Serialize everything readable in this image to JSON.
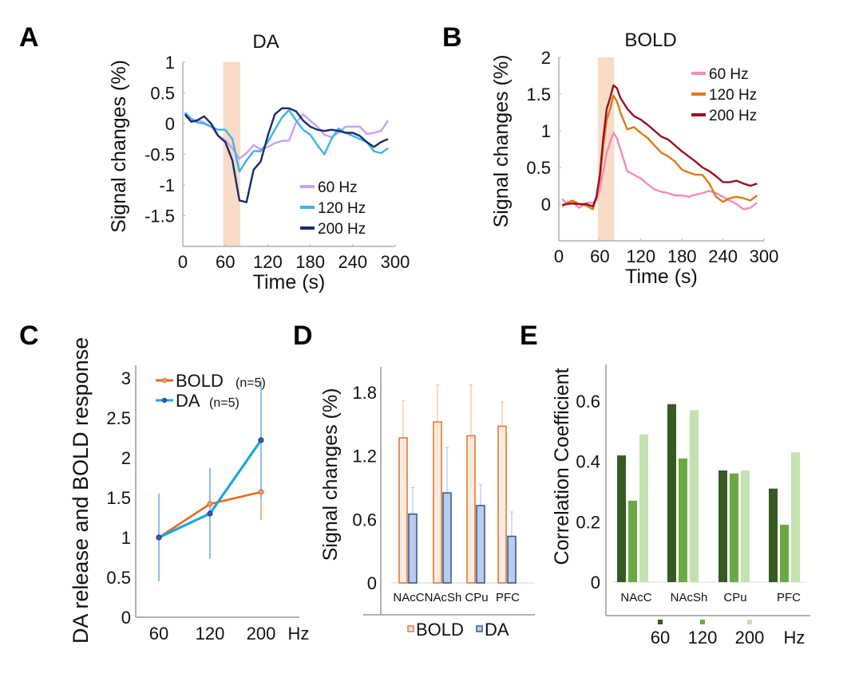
{
  "panels": {
    "A": "A",
    "B": "B",
    "C": "C",
    "D": "D",
    "E": "E"
  },
  "chart_data": [
    {
      "id": "A",
      "type": "line",
      "title": "DA",
      "xlabel": "Time (s)",
      "ylabel": "Signal changes (%)",
      "xlim": [
        0,
        300
      ],
      "ylim": [
        -2,
        1
      ],
      "xticks": [
        "0",
        "60",
        "120",
        "180",
        "240",
        "300"
      ],
      "xtick_values": [
        0,
        60,
        120,
        180,
        240,
        300
      ],
      "yticks": [
        "1",
        "0.5",
        "0",
        "-0.5",
        "-1",
        "-1.5"
      ],
      "ytick_values": [
        1,
        0.5,
        0,
        -0.5,
        -1,
        -1.5
      ],
      "stim_window": [
        57,
        81
      ],
      "stim_color": "#f8dcc8",
      "legend_position": "bottom-right",
      "series": [
        {
          "name": "60 Hz",
          "color": "#c9a0f0",
          "x": [
            3,
            12,
            20,
            30,
            40,
            50,
            60,
            70,
            80,
            90,
            100,
            110,
            120,
            130,
            140,
            150,
            160,
            170,
            180,
            190,
            200,
            210,
            220,
            230,
            240,
            250,
            260,
            270,
            280,
            290
          ],
          "y": [
            0.12,
            0.05,
            0.06,
            0.02,
            -0.05,
            -0.2,
            -0.27,
            -0.4,
            -0.57,
            -0.48,
            -0.35,
            -0.42,
            -0.38,
            -0.32,
            -0.28,
            -0.28,
            0.02,
            0.15,
            0.05,
            -0.05,
            -0.18,
            -0.22,
            -0.15,
            -0.05,
            -0.05,
            -0.05,
            -0.17,
            -0.15,
            -0.12,
            0.05
          ]
        },
        {
          "name": "120 Hz",
          "color": "#3ab4e8",
          "x": [
            3,
            12,
            20,
            30,
            40,
            50,
            60,
            70,
            80,
            90,
            100,
            110,
            120,
            130,
            140,
            150,
            160,
            170,
            180,
            190,
            200,
            210,
            220,
            230,
            240,
            250,
            260,
            270,
            280,
            290
          ],
          "y": [
            0.18,
            0.08,
            0.02,
            0.0,
            -0.05,
            -0.1,
            -0.1,
            -0.25,
            -0.78,
            -0.6,
            -0.45,
            -0.45,
            -0.3,
            -0.1,
            0.1,
            0.22,
            0.05,
            -0.1,
            -0.18,
            -0.35,
            -0.5,
            -0.25,
            -0.08,
            -0.15,
            -0.2,
            -0.25,
            -0.3,
            -0.45,
            -0.48,
            -0.4
          ]
        },
        {
          "name": "200 Hz",
          "color": "#1b2a6b",
          "x": [
            3,
            12,
            20,
            30,
            40,
            50,
            60,
            70,
            80,
            90,
            100,
            110,
            120,
            130,
            140,
            150,
            160,
            170,
            180,
            190,
            200,
            210,
            220,
            230,
            240,
            250,
            260,
            270,
            280,
            290
          ],
          "y": [
            0.15,
            0.03,
            0.05,
            0.12,
            0.0,
            -0.2,
            -0.3,
            -0.6,
            -1.25,
            -1.28,
            -0.75,
            -0.62,
            -0.2,
            0.15,
            0.25,
            0.25,
            0.2,
            0.05,
            -0.05,
            -0.1,
            -0.12,
            -0.1,
            -0.12,
            -0.15,
            -0.15,
            -0.2,
            -0.3,
            -0.38,
            -0.3,
            -0.25
          ]
        }
      ]
    },
    {
      "id": "B",
      "type": "line",
      "title": "BOLD",
      "xlabel": "Time (s)",
      "ylabel": "Signal changes (%)",
      "xlim": [
        0,
        300
      ],
      "ylim": [
        -0.5,
        2
      ],
      "xticks": [
        "0",
        "60",
        "120",
        "180",
        "240",
        "300"
      ],
      "xtick_values": [
        0,
        60,
        120,
        180,
        240,
        300
      ],
      "yticks": [
        "2",
        "1.5",
        "1",
        "0.5",
        "0"
      ],
      "ytick_values": [
        2,
        1.5,
        1,
        0.5,
        0
      ],
      "stim_window": [
        57,
        81
      ],
      "stim_color": "#f8dcc8",
      "legend_position": "top-right",
      "series": [
        {
          "name": "60 Hz",
          "color": "#f58ab8",
          "x": [
            5,
            12,
            20,
            30,
            40,
            50,
            55,
            60,
            65,
            70,
            75,
            80,
            85,
            90,
            100,
            110,
            120,
            130,
            140,
            150,
            160,
            170,
            180,
            190,
            200,
            210,
            220,
            230,
            240,
            250,
            260,
            270,
            280,
            290
          ],
          "y": [
            0.07,
            0.0,
            0.02,
            -0.05,
            0.02,
            0.02,
            0.05,
            0.2,
            0.45,
            0.7,
            0.85,
            0.97,
            0.9,
            0.75,
            0.45,
            0.4,
            0.35,
            0.27,
            0.2,
            0.17,
            0.15,
            0.12,
            0.12,
            0.1,
            0.13,
            0.15,
            0.18,
            0.15,
            0.1,
            0.05,
            0.0,
            -0.07,
            -0.05,
            0.02
          ]
        },
        {
          "name": "120 Hz",
          "color": "#dc7b16",
          "x": [
            5,
            12,
            20,
            30,
            40,
            50,
            55,
            60,
            65,
            70,
            75,
            80,
            85,
            90,
            100,
            110,
            120,
            130,
            140,
            150,
            160,
            170,
            180,
            190,
            200,
            210,
            220,
            230,
            240,
            250,
            260,
            270,
            280,
            290
          ],
          "y": [
            -0.03,
            0.02,
            0.05,
            0.0,
            -0.02,
            -0.07,
            0.1,
            0.35,
            0.8,
            1.15,
            1.3,
            1.48,
            1.4,
            1.25,
            1.02,
            1.05,
            0.97,
            0.9,
            0.8,
            0.7,
            0.65,
            0.58,
            0.47,
            0.43,
            0.4,
            0.4,
            0.28,
            0.1,
            0.03,
            0.08,
            0.1,
            0.08,
            0.05,
            0.12
          ]
        },
        {
          "name": "200 Hz",
          "color": "#9a1020",
          "x": [
            5,
            12,
            20,
            30,
            40,
            50,
            55,
            60,
            65,
            70,
            75,
            80,
            85,
            90,
            100,
            110,
            120,
            130,
            140,
            150,
            160,
            170,
            180,
            190,
            200,
            210,
            220,
            230,
            240,
            250,
            260,
            270,
            280,
            290
          ],
          "y": [
            -0.01,
            0.0,
            0.01,
            0.0,
            0.0,
            -0.03,
            0.1,
            0.4,
            0.9,
            1.3,
            1.45,
            1.62,
            1.58,
            1.45,
            1.3,
            1.2,
            1.15,
            1.08,
            1.0,
            0.92,
            0.88,
            0.8,
            0.72,
            0.65,
            0.58,
            0.5,
            0.45,
            0.38,
            0.3,
            0.3,
            0.32,
            0.28,
            0.25,
            0.28
          ]
        }
      ]
    },
    {
      "id": "C",
      "type": "line",
      "xlabel": "Hz",
      "ylabel": "DA release and BOLD response",
      "ylim": [
        0,
        3
      ],
      "categories": [
        "60",
        "120",
        "200"
      ],
      "yticks": [
        "3",
        "2.5",
        "2",
        "1.5",
        "1",
        "0.5",
        "0"
      ],
      "ytick_values": [
        3,
        2.5,
        2,
        1.5,
        1,
        0.5,
        0
      ],
      "legend_position": "top-left",
      "series": [
        {
          "name": "BOLD",
          "suffix": "(n=5)",
          "color": "#e8681e",
          "marker_color": "#e8681e",
          "err_color": "#f7b58a",
          "values": [
            1.0,
            1.42,
            1.57
          ],
          "err": [
            0,
            0,
            0.35
          ]
        },
        {
          "name": "DA",
          "suffix": "(n=5)",
          "color": "#1aa7e0",
          "marker_color": "#1e3f8c",
          "err_color": "#8cc0e8",
          "values": [
            1.0,
            1.3,
            2.22
          ],
          "err": [
            0.55,
            0.57,
            0.75
          ]
        }
      ]
    },
    {
      "id": "D",
      "type": "bar",
      "ylabel": "Signal changes (%)",
      "ylim": [
        0,
        2.0
      ],
      "categories": [
        "NAcC",
        "NAcSh",
        "CPu",
        "PFC"
      ],
      "yticks": [
        "1.8",
        "1.2",
        "0.6",
        "0"
      ],
      "ytick_values": [
        1.8,
        1.2,
        0.6,
        0
      ],
      "legend_position": "bottom",
      "series": [
        {
          "name": "BOLD",
          "fill": "#fde6d6",
          "stroke": "#e07b3c",
          "err_color": "#f7c4a4",
          "values": [
            1.37,
            1.52,
            1.39,
            1.48
          ],
          "err": [
            0.35,
            0.35,
            0.48,
            0.23
          ]
        },
        {
          "name": "DA",
          "fill": "#b8cdee",
          "stroke": "#3c5a8c",
          "err_color": "#b5cbee",
          "values": [
            0.65,
            0.85,
            0.73,
            0.44
          ],
          "err": [
            0.25,
            0.43,
            0.2,
            0.23
          ]
        }
      ]
    },
    {
      "id": "E",
      "type": "bar",
      "ylabel": "Correlation Coefficient",
      "ylim": [
        0,
        0.72
      ],
      "categories": [
        "NAcC",
        "NAcSh",
        "CPu",
        "PFC"
      ],
      "yticks": [
        "0.6",
        "0.4",
        "0.2",
        "0"
      ],
      "ytick_values": [
        0.6,
        0.4,
        0.2,
        0
      ],
      "legend_position": "bottom",
      "legend_unit": "Hz",
      "series": [
        {
          "name": "60",
          "color": "#375a22",
          "values": [
            0.42,
            0.59,
            0.37,
            0.31
          ]
        },
        {
          "name": "120",
          "color": "#6aaa44",
          "values": [
            0.27,
            0.41,
            0.36,
            0.19
          ]
        },
        {
          "name": "200",
          "color": "#c4e1b2",
          "values": [
            0.49,
            0.57,
            0.37,
            0.43
          ]
        }
      ]
    }
  ]
}
